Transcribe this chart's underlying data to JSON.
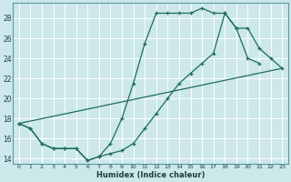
{
  "xlabel": "Humidex (Indice chaleur)",
  "bg_color": "#cce8ea",
  "grid_color": "#ffffff",
  "line_color": "#1e6b5e",
  "xlim": [
    -0.5,
    23.5
  ],
  "ylim": [
    13.5,
    29.5
  ],
  "xticks": [
    0,
    1,
    2,
    3,
    4,
    5,
    6,
    7,
    8,
    9,
    10,
    11,
    12,
    13,
    14,
    15,
    16,
    17,
    18,
    19,
    20,
    21,
    22,
    23
  ],
  "yticks": [
    14,
    16,
    18,
    20,
    22,
    24,
    26,
    28
  ],
  "line1_x": [
    0,
    1,
    2,
    3,
    4,
    5,
    6,
    7,
    8,
    9,
    10,
    11,
    12,
    13,
    14,
    15,
    16,
    17,
    18,
    19,
    20,
    21
  ],
  "line1_y": [
    17.5,
    17.0,
    15.5,
    15.0,
    15.0,
    15.0,
    13.8,
    14.2,
    15.5,
    18.0,
    21.5,
    25.5,
    28.5,
    28.5,
    28.5,
    28.5,
    29.0,
    28.5,
    28.5,
    27.0,
    24.0,
    23.5
  ],
  "line2_x": [
    0,
    1,
    2,
    3,
    4,
    5,
    6,
    7,
    8,
    9,
    10,
    11,
    12,
    13,
    14,
    15,
    16,
    17,
    18,
    19,
    20,
    21,
    22,
    23
  ],
  "line2_y": [
    17.5,
    17.0,
    15.5,
    15.0,
    15.0,
    15.0,
    13.8,
    14.2,
    14.5,
    14.8,
    15.5,
    17.0,
    18.5,
    20.0,
    21.5,
    22.5,
    23.5,
    24.5,
    28.5,
    27.0,
    27.0,
    25.0,
    24.0,
    23.0
  ],
  "line3_x": [
    0,
    23
  ],
  "line3_y": [
    17.5,
    23.0
  ]
}
